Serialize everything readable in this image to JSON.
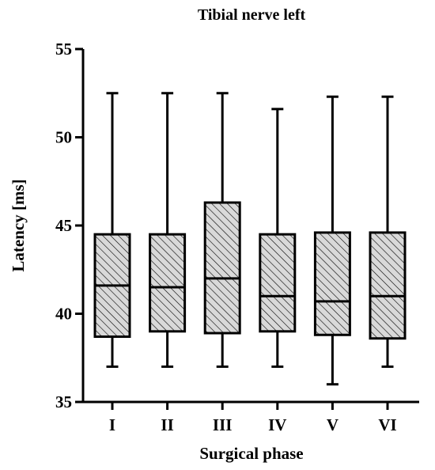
{
  "chart_data": {
    "type": "box",
    "title": "Tibial nerve left",
    "xlabel": "Surgical phase",
    "ylabel": "Latency  [ms]",
    "ylim": [
      35,
      55
    ],
    "yticks": [
      35,
      40,
      45,
      50,
      55
    ],
    "categories": [
      "I",
      "II",
      "III",
      "IV",
      "V",
      "VI"
    ],
    "boxes": [
      {
        "min": 37,
        "q1": 38.7,
        "median": 41.6,
        "q3": 44.5,
        "max": 52.5
      },
      {
        "min": 37,
        "q1": 39.0,
        "median": 41.5,
        "q3": 44.5,
        "max": 52.5
      },
      {
        "min": 37,
        "q1": 38.9,
        "median": 42.0,
        "q3": 46.3,
        "max": 52.5
      },
      {
        "min": 37,
        "q1": 39.0,
        "median": 41.0,
        "q3": 44.5,
        "max": 51.6
      },
      {
        "min": 36,
        "q1": 38.8,
        "median": 40.7,
        "q3": 44.6,
        "max": 52.3
      },
      {
        "min": 37,
        "q1": 38.6,
        "median": 41.0,
        "q3": 44.6,
        "max": 52.3
      }
    ],
    "box_fill": "#d9d9d9",
    "stroke_color": "#000000",
    "grid": false,
    "legend": "none"
  }
}
